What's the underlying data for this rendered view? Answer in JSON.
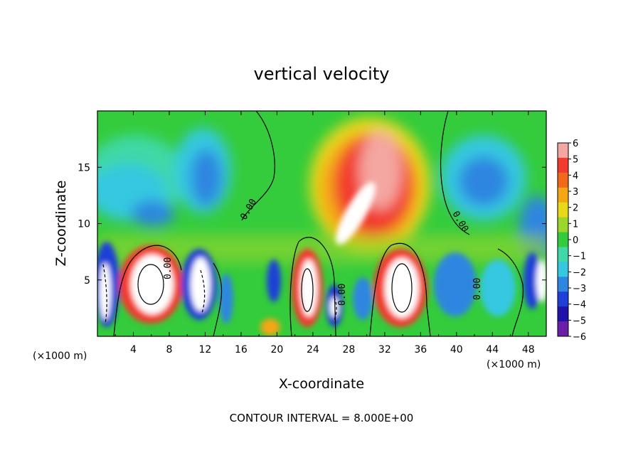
{
  "chart_data": {
    "type": "heatmap",
    "title": "vertical velocity",
    "xlabel": "X-coordinate",
    "ylabel": "Z-coordinate",
    "x_unit_left": "(×1000 m)",
    "x_unit_right": "(×1000 m)",
    "footer": "CONTOUR INTERVAL = 8.000E+00",
    "xlim": [
      0,
      50
    ],
    "ylim": [
      0,
      20
    ],
    "x_ticks": [
      "4",
      "8",
      "12",
      "16",
      "20",
      "24",
      "28",
      "32",
      "36",
      "40",
      "44",
      "48"
    ],
    "y_ticks": [
      "5",
      "10",
      "15"
    ],
    "colorbar": {
      "ticks": [
        "6",
        "5",
        "4",
        "3",
        "2",
        "1",
        "0",
        "-1",
        "-2",
        "-3",
        "-4",
        "-5",
        "-6"
      ],
      "colors": [
        "#f4a6a0",
        "#f23b2e",
        "#f06a1a",
        "#f5a615",
        "#e8d81a",
        "#9ad62c",
        "#34cc3c",
        "#3fd8a6",
        "#36c8e0",
        "#2f86e0",
        "#1f3fd8",
        "#2012a8",
        "#6b1fa8"
      ]
    },
    "contour_labels": [
      "0.00",
      "0.00",
      "0.00",
      "0.00",
      "0.00"
    ]
  }
}
